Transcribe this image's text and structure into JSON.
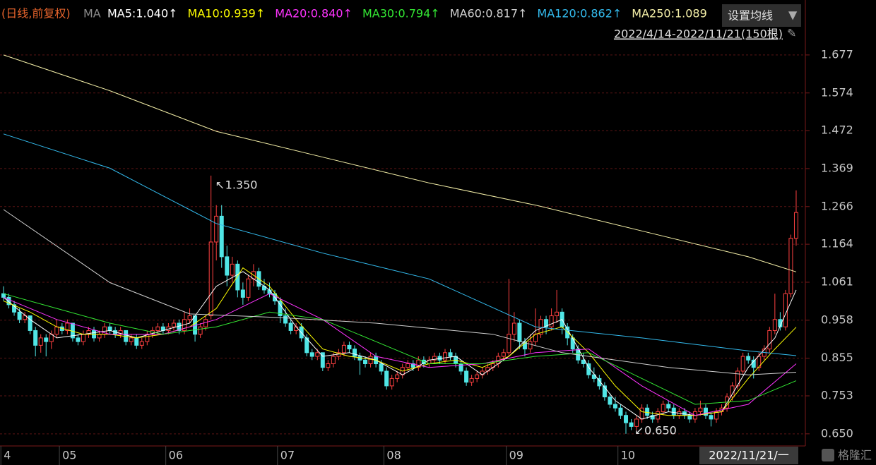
{
  "chart_data": {
    "type": "candlestick",
    "subtitle": "(日线,前复权)",
    "indicator": "MA",
    "settings_button": "设置均线",
    "range_label": "2022/4/14-2022/11/21(150根)",
    "cursor_date": "2022/11/21/一",
    "watermark": "格隆汇",
    "up_color": "#ff4040",
    "down_color": "#50e6e6",
    "grid": true,
    "ylim": [
      0.621,
      1.826
    ],
    "yticks": [
      {
        "value": 0.65,
        "label": "0.650"
      },
      0.753,
      0.855,
      0.958,
      1.061,
      1.164,
      1.266,
      1.369,
      1.472,
      1.574,
      1.677
    ],
    "xlim": [
      -0.5,
      150
    ],
    "xticks": [
      {
        "value": -0.5,
        "label": "4"
      },
      {
        "value": 10.5,
        "label": "05"
      },
      {
        "value": 30.5,
        "label": "06"
      },
      {
        "value": 51.5,
        "label": "07"
      },
      {
        "value": 71.5,
        "label": "08"
      },
      {
        "value": 94.5,
        "label": "09"
      },
      {
        "value": 115.5,
        "label": "10"
      }
    ],
    "annotations": [
      {
        "text": "1.350",
        "x": 39,
        "y": 1.35
      },
      {
        "text": "0.650",
        "x": 117,
        "y": 0.65
      }
    ],
    "ohlc": [
      [
        1.03,
        1.05,
        1.01,
        1.02
      ],
      [
        1.02,
        1.03,
        0.99,
        1.0
      ],
      [
        1.0,
        1.01,
        0.97,
        0.98
      ],
      [
        0.98,
        0.99,
        0.95,
        0.96
      ],
      [
        0.96,
        0.98,
        0.95,
        0.97
      ],
      [
        0.97,
        0.97,
        0.92,
        0.93
      ],
      [
        0.93,
        0.94,
        0.86,
        0.89
      ],
      [
        0.89,
        0.92,
        0.87,
        0.91
      ],
      [
        0.91,
        0.92,
        0.86,
        0.9
      ],
      [
        0.9,
        0.93,
        0.88,
        0.92
      ],
      [
        0.92,
        0.96,
        0.91,
        0.94
      ],
      [
        0.94,
        0.95,
        0.92,
        0.93
      ],
      [
        0.93,
        0.96,
        0.92,
        0.95
      ],
      [
        0.95,
        0.95,
        0.9,
        0.91
      ],
      [
        0.91,
        0.92,
        0.89,
        0.9
      ],
      [
        0.9,
        0.93,
        0.89,
        0.92
      ],
      [
        0.92,
        0.94,
        0.91,
        0.93
      ],
      [
        0.93,
        0.94,
        0.9,
        0.91
      ],
      [
        0.91,
        0.93,
        0.9,
        0.92
      ],
      [
        0.92,
        0.95,
        0.91,
        0.94
      ],
      [
        0.94,
        0.95,
        0.92,
        0.93
      ],
      [
        0.93,
        0.94,
        0.91,
        0.92
      ],
      [
        0.92,
        0.94,
        0.91,
        0.93
      ],
      [
        0.93,
        0.93,
        0.89,
        0.9
      ],
      [
        0.9,
        0.92,
        0.89,
        0.91
      ],
      [
        0.91,
        0.92,
        0.88,
        0.89
      ],
      [
        0.89,
        0.91,
        0.88,
        0.9
      ],
      [
        0.9,
        0.93,
        0.89,
        0.92
      ],
      [
        0.92,
        0.94,
        0.91,
        0.93
      ],
      [
        0.93,
        0.95,
        0.92,
        0.94
      ],
      [
        0.94,
        0.95,
        0.92,
        0.93
      ],
      [
        0.93,
        0.95,
        0.92,
        0.94
      ],
      [
        0.94,
        0.96,
        0.93,
        0.95
      ],
      [
        0.95,
        0.96,
        0.92,
        0.93
      ],
      [
        0.93,
        0.98,
        0.92,
        0.96
      ],
      [
        0.96,
        0.99,
        0.95,
        0.97
      ],
      [
        0.97,
        0.97,
        0.9,
        0.92
      ],
      [
        0.92,
        0.95,
        0.91,
        0.94
      ],
      [
        0.94,
        0.97,
        0.93,
        0.96
      ],
      [
        0.97,
        1.35,
        0.96,
        1.17
      ],
      [
        1.17,
        1.27,
        1.12,
        1.24
      ],
      [
        1.24,
        1.27,
        1.1,
        1.13
      ],
      [
        1.13,
        1.16,
        1.05,
        1.08
      ],
      [
        1.08,
        1.13,
        1.06,
        1.11
      ],
      [
        1.11,
        1.12,
        1.02,
        1.04
      ],
      [
        1.04,
        1.06,
        1.0,
        1.02
      ],
      [
        1.02,
        1.08,
        1.01,
        1.07
      ],
      [
        1.07,
        1.11,
        1.05,
        1.09
      ],
      [
        1.09,
        1.1,
        1.04,
        1.05
      ],
      [
        1.05,
        1.07,
        1.03,
        1.04
      ],
      [
        1.04,
        1.06,
        1.02,
        1.03
      ],
      [
        1.03,
        1.04,
        1.0,
        1.01
      ],
      [
        1.01,
        1.02,
        0.95,
        0.97
      ],
      [
        0.97,
        0.99,
        0.94,
        0.95
      ],
      [
        0.95,
        0.96,
        0.92,
        0.93
      ],
      [
        0.93,
        0.95,
        0.92,
        0.94
      ],
      [
        0.94,
        0.95,
        0.9,
        0.91
      ],
      [
        0.91,
        0.92,
        0.86,
        0.87
      ],
      [
        0.87,
        0.88,
        0.85,
        0.86
      ],
      [
        0.86,
        0.88,
        0.85,
        0.87
      ],
      [
        0.87,
        0.87,
        0.82,
        0.83
      ],
      [
        0.83,
        0.85,
        0.82,
        0.84
      ],
      [
        0.84,
        0.87,
        0.83,
        0.86
      ],
      [
        0.86,
        0.88,
        0.85,
        0.87
      ],
      [
        0.87,
        0.9,
        0.86,
        0.89
      ],
      [
        0.89,
        0.9,
        0.87,
        0.88
      ],
      [
        0.88,
        0.89,
        0.85,
        0.86
      ],
      [
        0.86,
        0.87,
        0.81,
        0.85
      ],
      [
        0.85,
        0.86,
        0.83,
        0.84
      ],
      [
        0.84,
        0.87,
        0.83,
        0.86
      ],
      [
        0.86,
        0.87,
        0.83,
        0.84
      ],
      [
        0.84,
        0.85,
        0.81,
        0.82
      ],
      [
        0.82,
        0.83,
        0.77,
        0.78
      ],
      [
        0.78,
        0.81,
        0.77,
        0.8
      ],
      [
        0.8,
        0.82,
        0.79,
        0.81
      ],
      [
        0.81,
        0.84,
        0.8,
        0.83
      ],
      [
        0.83,
        0.85,
        0.82,
        0.84
      ],
      [
        0.84,
        0.85,
        0.82,
        0.83
      ],
      [
        0.83,
        0.86,
        0.82,
        0.85
      ],
      [
        0.85,
        0.86,
        0.83,
        0.84
      ],
      [
        0.84,
        0.86,
        0.83,
        0.85
      ],
      [
        0.85,
        0.87,
        0.84,
        0.86
      ],
      [
        0.86,
        0.87,
        0.84,
        0.85
      ],
      [
        0.85,
        0.88,
        0.84,
        0.87
      ],
      [
        0.87,
        0.88,
        0.85,
        0.86
      ],
      [
        0.86,
        0.87,
        0.83,
        0.84
      ],
      [
        0.84,
        0.85,
        0.81,
        0.82
      ],
      [
        0.82,
        0.83,
        0.78,
        0.79
      ],
      [
        0.79,
        0.81,
        0.78,
        0.8
      ],
      [
        0.8,
        0.82,
        0.79,
        0.81
      ],
      [
        0.81,
        0.83,
        0.8,
        0.82
      ],
      [
        0.82,
        0.84,
        0.81,
        0.83
      ],
      [
        0.83,
        0.85,
        0.82,
        0.84
      ],
      [
        0.84,
        0.87,
        0.83,
        0.86
      ],
      [
        0.86,
        0.88,
        0.85,
        0.87
      ],
      [
        0.87,
        1.07,
        0.86,
        0.92
      ],
      [
        0.92,
        0.98,
        0.9,
        0.95
      ],
      [
        0.95,
        0.96,
        0.88,
        0.9
      ],
      [
        0.9,
        0.91,
        0.86,
        0.88
      ],
      [
        0.88,
        0.92,
        0.87,
        0.9
      ],
      [
        0.9,
        0.99,
        0.89,
        0.92
      ],
      [
        0.92,
        0.97,
        0.91,
        0.96
      ],
      [
        0.96,
        0.97,
        0.92,
        0.94
      ],
      [
        0.94,
        0.99,
        0.93,
        0.97
      ],
      [
        0.97,
        1.04,
        0.95,
        0.98
      ],
      [
        0.98,
        0.99,
        0.92,
        0.94
      ],
      [
        0.94,
        0.95,
        0.89,
        0.91
      ],
      [
        0.91,
        0.92,
        0.87,
        0.88
      ],
      [
        0.88,
        0.89,
        0.84,
        0.85
      ],
      [
        0.85,
        0.87,
        0.83,
        0.84
      ],
      [
        0.84,
        0.85,
        0.8,
        0.81
      ],
      [
        0.81,
        0.83,
        0.79,
        0.8
      ],
      [
        0.8,
        0.81,
        0.77,
        0.78
      ],
      [
        0.78,
        0.79,
        0.74,
        0.75
      ],
      [
        0.75,
        0.76,
        0.72,
        0.73
      ],
      [
        0.73,
        0.75,
        0.71,
        0.72
      ],
      [
        0.72,
        0.73,
        0.69,
        0.7
      ],
      [
        0.7,
        0.71,
        0.65,
        0.68
      ],
      [
        0.68,
        0.69,
        0.66,
        0.67
      ],
      [
        0.67,
        0.7,
        0.66,
        0.69
      ],
      [
        0.69,
        0.73,
        0.68,
        0.72
      ],
      [
        0.72,
        0.73,
        0.69,
        0.7
      ],
      [
        0.7,
        0.71,
        0.68,
        0.69
      ],
      [
        0.69,
        0.72,
        0.68,
        0.71
      ],
      [
        0.71,
        0.74,
        0.7,
        0.73
      ],
      [
        0.73,
        0.74,
        0.71,
        0.72
      ],
      [
        0.72,
        0.73,
        0.69,
        0.7
      ],
      [
        0.7,
        0.72,
        0.69,
        0.71
      ],
      [
        0.71,
        0.72,
        0.69,
        0.7
      ],
      [
        0.7,
        0.71,
        0.68,
        0.69
      ],
      [
        0.69,
        0.72,
        0.68,
        0.71
      ],
      [
        0.71,
        0.74,
        0.7,
        0.72
      ],
      [
        0.72,
        0.73,
        0.69,
        0.7
      ],
      [
        0.7,
        0.71,
        0.67,
        0.69
      ],
      [
        0.69,
        0.72,
        0.68,
        0.71
      ],
      [
        0.71,
        0.73,
        0.7,
        0.72
      ],
      [
        0.72,
        0.76,
        0.71,
        0.75
      ],
      [
        0.75,
        0.79,
        0.74,
        0.78
      ],
      [
        0.78,
        0.83,
        0.77,
        0.82
      ],
      [
        0.82,
        0.87,
        0.81,
        0.86
      ],
      [
        0.86,
        0.87,
        0.84,
        0.85
      ],
      [
        0.85,
        0.86,
        0.8,
        0.83
      ],
      [
        0.83,
        0.87,
        0.82,
        0.86
      ],
      [
        0.86,
        0.89,
        0.85,
        0.88
      ],
      [
        0.88,
        0.94,
        0.87,
        0.93
      ],
      [
        0.93,
        1.03,
        0.92,
        0.96
      ],
      [
        0.96,
        0.98,
        0.93,
        0.94
      ],
      [
        0.94,
        1.04,
        0.93,
        1.03
      ],
      [
        1.03,
        1.19,
        1.02,
        1.18
      ],
      [
        1.18,
        1.31,
        1.16,
        1.25
      ]
    ],
    "series": [
      {
        "name": "MA5:1.040↑",
        "color": "#ffffff",
        "x": [
          0,
          5,
          10,
          15,
          20,
          25,
          30,
          35,
          40,
          45,
          50,
          55,
          60,
          65,
          70,
          75,
          80,
          85,
          90,
          95,
          100,
          105,
          110,
          115,
          120,
          125,
          130,
          135,
          140,
          145,
          149
        ],
        "values": [
          1.02,
          0.96,
          0.91,
          0.92,
          0.93,
          0.91,
          0.93,
          0.95,
          1.05,
          1.09,
          1.04,
          0.94,
          0.86,
          0.87,
          0.85,
          0.81,
          0.85,
          0.86,
          0.81,
          0.86,
          0.93,
          0.96,
          0.83,
          0.74,
          0.69,
          0.71,
          0.7,
          0.71,
          0.83,
          0.91,
          1.04
        ]
      },
      {
        "name": "MA10:0.939↑",
        "color": "#ffff00",
        "x": [
          0,
          5,
          10,
          15,
          20,
          25,
          30,
          35,
          40,
          45,
          50,
          55,
          60,
          65,
          70,
          75,
          80,
          85,
          90,
          95,
          100,
          105,
          110,
          115,
          120,
          125,
          130,
          135,
          140,
          145,
          149
        ],
        "values": [
          1.01,
          0.98,
          0.94,
          0.92,
          0.92,
          0.91,
          0.92,
          0.94,
          0.99,
          1.1,
          1.05,
          0.96,
          0.88,
          0.86,
          0.85,
          0.82,
          0.84,
          0.85,
          0.83,
          0.86,
          0.92,
          0.94,
          0.87,
          0.78,
          0.71,
          0.7,
          0.7,
          0.71,
          0.8,
          0.88,
          0.939
        ]
      },
      {
        "name": "MA20:0.840↑",
        "color": "#ff33ff",
        "x": [
          0,
          10,
          20,
          30,
          40,
          50,
          60,
          70,
          80,
          90,
          100,
          110,
          120,
          130,
          140,
          149
        ],
        "values": [
          1.02,
          0.96,
          0.92,
          0.92,
          0.96,
          1.03,
          0.96,
          0.86,
          0.83,
          0.84,
          0.87,
          0.88,
          0.78,
          0.7,
          0.73,
          0.84
        ]
      },
      {
        "name": "MA30:0.794↑",
        "color": "#33e633",
        "x": [
          0,
          10,
          20,
          30,
          40,
          50,
          60,
          70,
          80,
          90,
          100,
          110,
          120,
          130,
          140,
          149
        ],
        "values": [
          1.03,
          0.99,
          0.95,
          0.92,
          0.94,
          0.98,
          0.96,
          0.9,
          0.84,
          0.84,
          0.86,
          0.87,
          0.8,
          0.73,
          0.74,
          0.794
        ]
      },
      {
        "name": "MA60:0.817↑",
        "color": "#d0d0d0",
        "x": [
          0,
          20,
          35,
          52,
          70,
          92,
          105,
          125,
          140,
          149
        ],
        "values": [
          1.258,
          1.06,
          0.975,
          0.965,
          0.95,
          0.92,
          0.87,
          0.83,
          0.81,
          0.817
        ]
      },
      {
        "name": "MA120:0.862↑",
        "color": "#33bbee",
        "x": [
          0,
          20,
          40,
          60,
          80,
          100,
          120,
          140,
          149
        ],
        "values": [
          1.463,
          1.37,
          1.22,
          1.14,
          1.07,
          0.94,
          0.91,
          0.875,
          0.862
        ]
      },
      {
        "name": "MA250:1.089",
        "color": "#f5f0a8",
        "x": [
          0,
          20,
          40,
          60,
          80,
          100,
          120,
          140,
          149
        ],
        "values": [
          1.677,
          1.58,
          1.47,
          1.4,
          1.33,
          1.27,
          1.2,
          1.13,
          1.089
        ]
      }
    ]
  }
}
